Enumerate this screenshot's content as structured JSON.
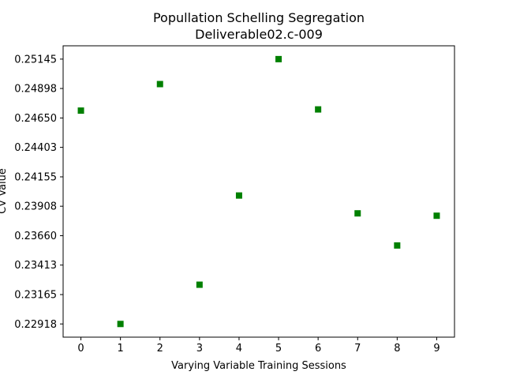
{
  "chart_data": {
    "type": "scatter",
    "title": "Popullation Schelling Segregation",
    "subtitle": "Deliverable02.c-009",
    "xlabel": "Varying Variable Training Sessions",
    "ylabel": "CV Value",
    "x": [
      0,
      1,
      2,
      3,
      4,
      5,
      6,
      7,
      8,
      9
    ],
    "y": [
      0.24712,
      0.22918,
      0.24935,
      0.23248,
      0.23998,
      0.25145,
      0.24722,
      0.23848,
      0.23578,
      0.23828
    ],
    "xticks": [
      "0",
      "1",
      "2",
      "3",
      "4",
      "5",
      "6",
      "7",
      "8",
      "9"
    ],
    "yticks": [
      "0.22918",
      "0.23165",
      "0.23413",
      "0.23660",
      "0.23908",
      "0.24155",
      "0.24403",
      "0.24650",
      "0.24898",
      "0.25145"
    ],
    "xlim": [
      -0.45,
      9.45
    ],
    "ylim": [
      0.22807,
      0.25257
    ],
    "marker": "square",
    "color": "#008000",
    "grid": false
  }
}
